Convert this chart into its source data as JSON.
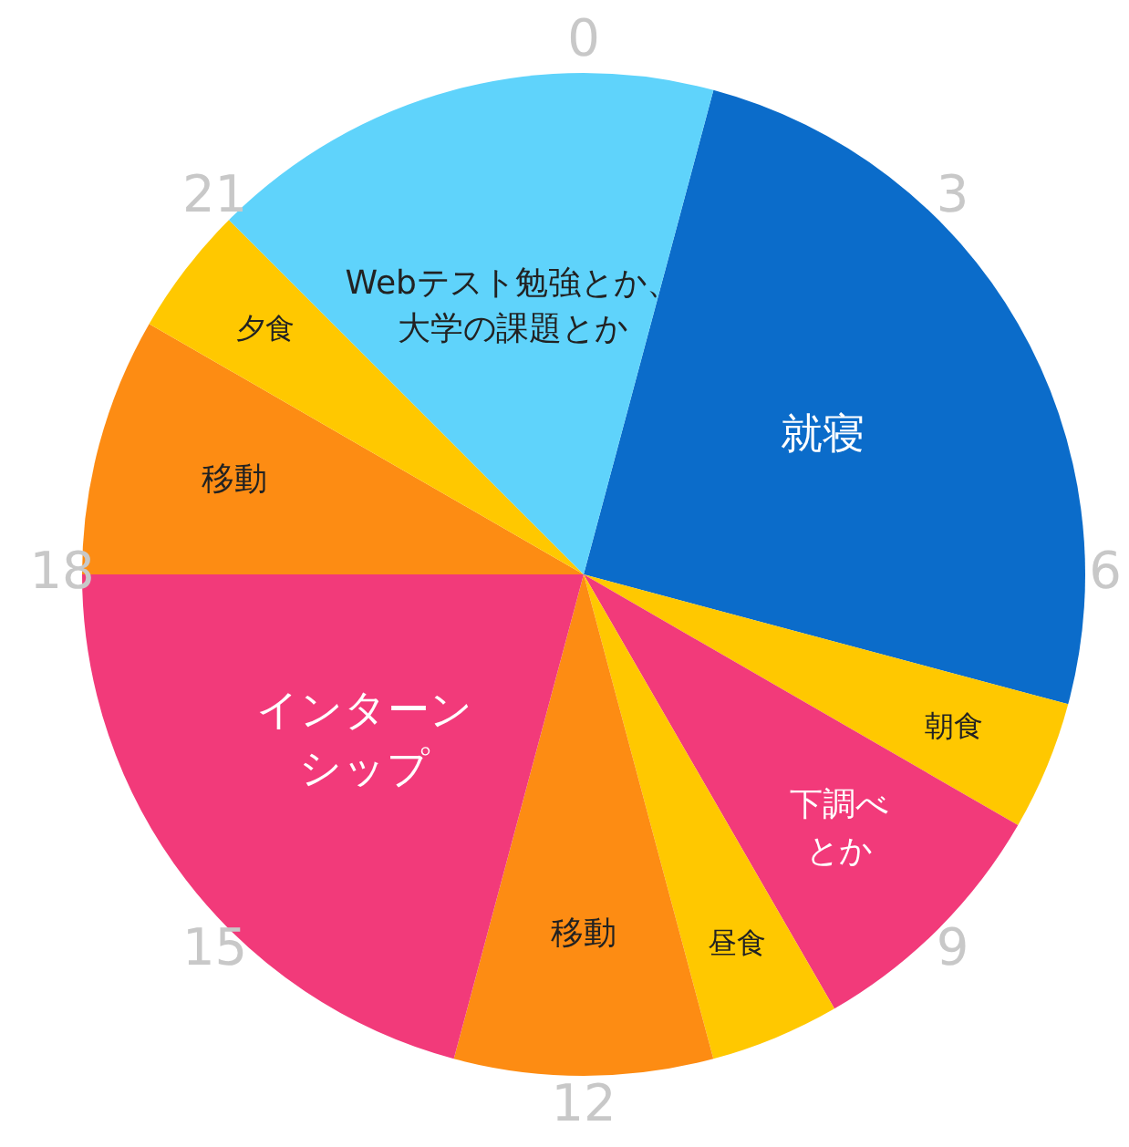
{
  "chart_data": {
    "type": "pie",
    "categories": [
      "就寝",
      "朝食",
      "下調べとか",
      "昼食",
      "移動",
      "インターンシップ",
      "移動",
      "夕食",
      "Webテスト勉強とか、大学の課題とか"
    ],
    "values": [
      25,
      4.17,
      8.33,
      4.17,
      8.33,
      20.83,
      8.33,
      4.17,
      16.67
    ],
    "colors": [
      "#0b6cca",
      "#ffc800",
      "#f23a7a",
      "#ffc800",
      "#fd8c13",
      "#f23a7a",
      "#fd8c13",
      "#ffc800",
      "#5fd3fb"
    ],
    "annotations": [
      "0",
      "3",
      "6",
      "9",
      "12",
      "15",
      "18",
      "21"
    ],
    "legend": false
  }
}
